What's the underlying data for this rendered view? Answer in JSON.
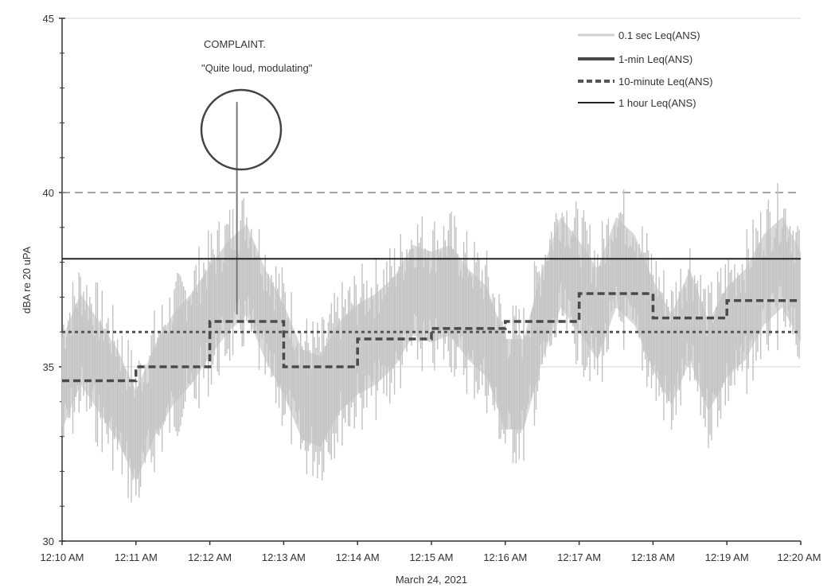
{
  "chart_data": {
    "type": "line",
    "xlabel": "March 24, 2021",
    "ylabel": "dBA re 20 uPA",
    "ylim": [
      30,
      45
    ],
    "xlim_minutes": [
      0,
      10
    ],
    "x_tick_labels": [
      "12:10 AM",
      "12:11 AM",
      "12:12 AM",
      "12:13 AM",
      "12:14 AM",
      "12:15 AM",
      "12:16 AM",
      "12:17 AM",
      "12:18 AM",
      "12:19 AM",
      "12:20 AM"
    ],
    "y_ticks": [
      30,
      35,
      40,
      45
    ],
    "grid": "horizontal",
    "legend_position": "top-right",
    "reference_line": {
      "value": 40,
      "style": "dashed"
    },
    "annotation": {
      "title": "COMPLAINT.",
      "text": "\"Quite loud, modulating\"",
      "time": "12:12 AM"
    },
    "series": [
      {
        "name": "0.1 sec Leq(ANS)",
        "color": "#c8c8c8",
        "x": [
          "12:10:00",
          "12:10:15",
          "12:10:30",
          "12:10:45",
          "12:11:00",
          "12:11:15",
          "12:11:30",
          "12:11:45",
          "12:12:00",
          "12:12:15",
          "12:12:30",
          "12:12:45",
          "12:13:00",
          "12:13:15",
          "12:13:30",
          "12:13:45",
          "12:14:00",
          "12:14:15",
          "12:14:30",
          "12:14:45",
          "12:15:00",
          "12:15:15",
          "12:15:30",
          "12:15:45",
          "12:16:00",
          "12:16:15",
          "12:16:30",
          "12:16:45",
          "12:17:00",
          "12:17:15",
          "12:17:30",
          "12:17:45",
          "12:18:00",
          "12:18:15",
          "12:18:30",
          "12:18:45",
          "12:19:00",
          "12:19:15",
          "12:19:30",
          "12:19:45",
          "12:20:00"
        ],
        "values": [
          34.5,
          35.8,
          35.0,
          34.2,
          33.0,
          34.3,
          35.2,
          35.8,
          36.6,
          37.3,
          37.8,
          36.5,
          35.5,
          34.2,
          34.0,
          35.0,
          35.5,
          35.8,
          36.3,
          37.2,
          37.0,
          37.2,
          36.5,
          36.0,
          34.5,
          34.5,
          36.5,
          38.0,
          37.3,
          36.5,
          38.0,
          37.5,
          36.2,
          35.2,
          36.5,
          35.0,
          36.0,
          36.5,
          37.5,
          38.0,
          37.0
        ]
      },
      {
        "name": "1-min Leq(ANS)",
        "color": "#4a4a4a",
        "x": [
          "12:10",
          "12:11",
          "12:12",
          "12:13",
          "12:14",
          "12:15",
          "12:16",
          "12:17",
          "12:18",
          "12:19",
          "12:20"
        ],
        "values": [
          34.6,
          35.0,
          36.3,
          35.0,
          35.8,
          36.1,
          36.3,
          37.1,
          36.4,
          36.9,
          36.9
        ]
      },
      {
        "name": "10-minute Leq(ANS)",
        "color": "#555555",
        "x": [
          "12:10",
          "12:20"
        ],
        "values": [
          36.0,
          36.0
        ]
      },
      {
        "name": "1 hour Leq(ANS)",
        "color": "#222222",
        "x": [
          "12:10",
          "12:20"
        ],
        "values": [
          38.1,
          38.1
        ]
      }
    ]
  }
}
